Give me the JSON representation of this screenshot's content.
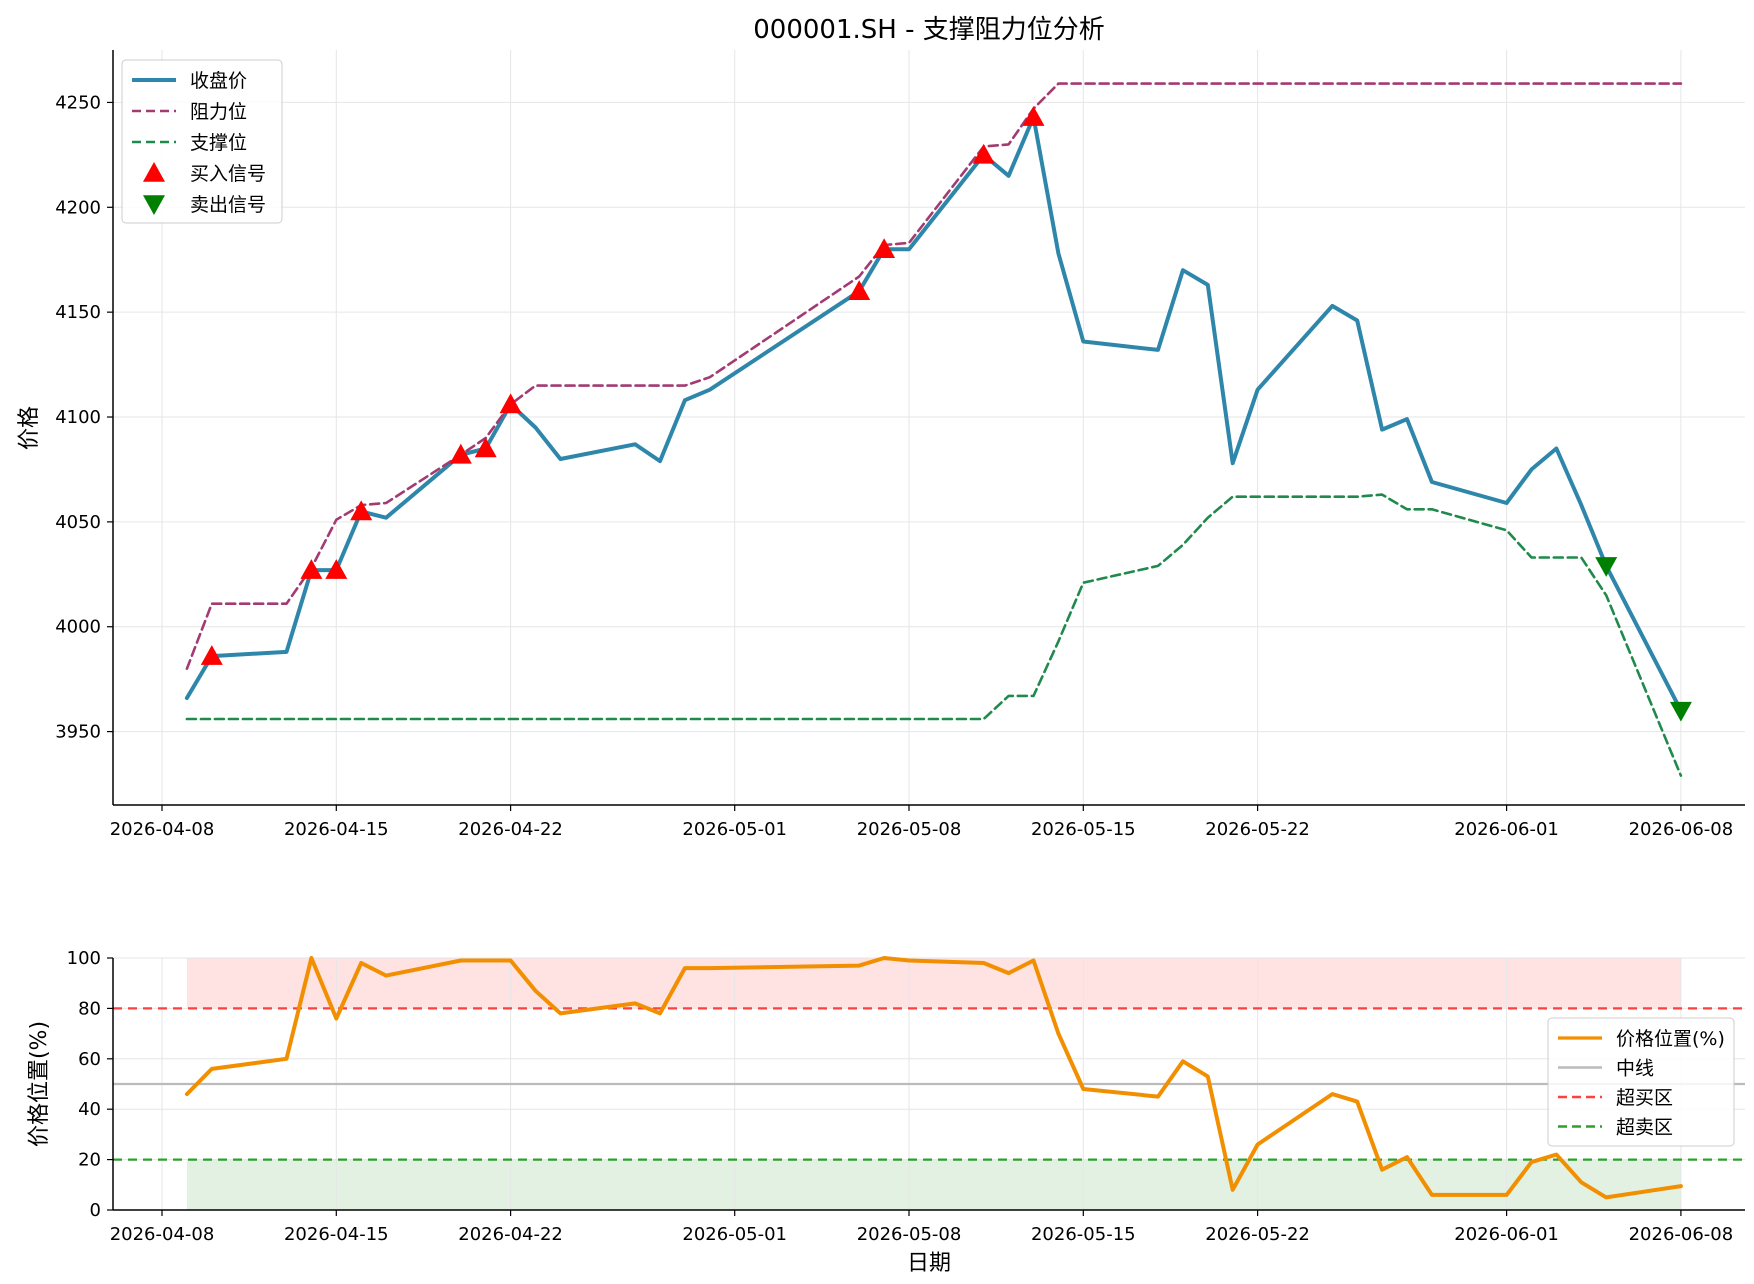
{
  "chart_data": [
    {
      "type": "line",
      "title": "000001.SH - 支撑阻力位分析",
      "xlabel": "",
      "ylabel": "价格",
      "ylim": [
        3915,
        4275
      ],
      "x_tick_labels": [
        "2026-04-08",
        "2026-04-15",
        "2026-04-22",
        "2026-05-01",
        "2026-05-08",
        "2026-05-15",
        "2026-05-22",
        "2026-06-01",
        "2026-06-08"
      ],
      "y_tick_labels": [
        "3950",
        "4000",
        "4050",
        "4100",
        "4150",
        "4200",
        "4250"
      ],
      "grid": true,
      "legend_position": "top-left",
      "x": [
        "2026-04-09",
        "2026-04-10",
        "2026-04-13",
        "2026-04-14",
        "2026-04-15",
        "2026-04-16",
        "2026-04-17",
        "2026-04-20",
        "2026-04-21",
        "2026-04-22",
        "2026-04-23",
        "2026-04-24",
        "2026-04-27",
        "2026-04-28",
        "2026-04-29",
        "2026-04-30",
        "2026-05-06",
        "2026-05-07",
        "2026-05-08",
        "2026-05-11",
        "2026-05-12",
        "2026-05-13",
        "2026-05-14",
        "2026-05-15",
        "2026-05-18",
        "2026-05-19",
        "2026-05-20",
        "2026-05-21",
        "2026-05-22",
        "2026-05-25",
        "2026-05-26",
        "2026-05-27",
        "2026-05-28",
        "2026-05-29",
        "2026-06-01",
        "2026-06-02",
        "2026-06-03",
        "2026-06-04",
        "2026-06-05",
        "2026-06-08"
      ],
      "series": [
        {
          "name": "收盘价",
          "color": "#2e86ab",
          "style": "solid",
          "values": [
            3966,
            3986,
            3988,
            4027,
            4027,
            4055,
            4052,
            4082,
            4085,
            4106,
            4095,
            4080,
            4087,
            4079,
            4108,
            4113,
            4160,
            4180,
            4180,
            4225,
            4215,
            4243,
            4178,
            4136,
            4132,
            4170,
            4163,
            4078,
            4113,
            4153,
            4146,
            4094,
            4099,
            4069,
            4059,
            4075,
            4085,
            4058,
            4029,
            3960
          ]
        },
        {
          "name": "阻力位",
          "color": "#a23b72",
          "style": "dashed",
          "values": [
            3980,
            4011,
            4011,
            4028,
            4051,
            4058,
            4059,
            4082,
            4090,
            4106,
            4115,
            4115,
            4115,
            4115,
            4115,
            4119,
            4167,
            4182,
            4183,
            4229,
            4230,
            4247,
            4259,
            4259,
            4259,
            4259,
            4259,
            4259,
            4259,
            4259,
            4259,
            4259,
            4259,
            4259,
            4259,
            4259,
            4259,
            4259,
            4259,
            4259
          ]
        },
        {
          "name": "支撑位",
          "color": "#1f8a4c",
          "style": "dashed",
          "values": [
            3956,
            3956,
            3956,
            3956,
            3956,
            3956,
            3956,
            3956,
            3956,
            3956,
            3956,
            3956,
            3956,
            3956,
            3956,
            3956,
            3956,
            3956,
            3956,
            3956,
            3967,
            3967,
            3993,
            4021,
            4029,
            4039,
            4052,
            4062,
            4062,
            4062,
            4062,
            4063,
            4056,
            4056,
            4046,
            4033,
            4033,
            4033,
            4015,
            3929
          ]
        }
      ],
      "markers": [
        {
          "name": "买入信号",
          "color": "#ff0000",
          "shape": "triangle-up",
          "points": [
            [
              "2026-04-10",
              3986
            ],
            [
              "2026-04-14",
              4027
            ],
            [
              "2026-04-15",
              4027
            ],
            [
              "2026-04-16",
              4055
            ],
            [
              "2026-04-20",
              4082
            ],
            [
              "2026-04-21",
              4085
            ],
            [
              "2026-04-22",
              4106
            ],
            [
              "2026-05-06",
              4160
            ],
            [
              "2026-05-07",
              4180
            ],
            [
              "2026-05-11",
              4225
            ],
            [
              "2026-05-13",
              4243
            ]
          ]
        },
        {
          "name": "卖出信号",
          "color": "#008000",
          "shape": "triangle-down",
          "points": [
            [
              "2026-06-05",
              4029
            ],
            [
              "2026-06-08",
              3960
            ]
          ]
        }
      ]
    },
    {
      "type": "line",
      "title": "",
      "xlabel": "日期",
      "ylabel": "价格位置(%)",
      "ylim": [
        0,
        100
      ],
      "x_tick_labels": [
        "2026-04-08",
        "2026-04-15",
        "2026-04-22",
        "2026-05-01",
        "2026-05-08",
        "2026-05-15",
        "2026-05-22",
        "2026-06-01",
        "2026-06-08"
      ],
      "y_tick_labels": [
        "0",
        "20",
        "40",
        "60",
        "80",
        "100"
      ],
      "grid": true,
      "legend_position": "right",
      "x": [
        "2026-04-09",
        "2026-04-10",
        "2026-04-13",
        "2026-04-14",
        "2026-04-15",
        "2026-04-16",
        "2026-04-17",
        "2026-04-20",
        "2026-04-21",
        "2026-04-22",
        "2026-04-23",
        "2026-04-24",
        "2026-04-27",
        "2026-04-28",
        "2026-04-29",
        "2026-04-30",
        "2026-05-06",
        "2026-05-07",
        "2026-05-08",
        "2026-05-11",
        "2026-05-12",
        "2026-05-13",
        "2026-05-14",
        "2026-05-15",
        "2026-05-18",
        "2026-05-19",
        "2026-05-20",
        "2026-05-21",
        "2026-05-22",
        "2026-05-25",
        "2026-05-26",
        "2026-05-27",
        "2026-05-28",
        "2026-05-29",
        "2026-06-01",
        "2026-06-02",
        "2026-06-03",
        "2026-06-04",
        "2026-06-05",
        "2026-06-08"
      ],
      "series": [
        {
          "name": "价格位置(%)",
          "color": "#f18f01",
          "style": "solid",
          "values": [
            46,
            56,
            60,
            100,
            76,
            98,
            93,
            99,
            99,
            99,
            87,
            78,
            82,
            78,
            96,
            96,
            97,
            100,
            99,
            98,
            94,
            99,
            70,
            48,
            45,
            59,
            53,
            8,
            26,
            46,
            43,
            16,
            21,
            6,
            6,
            19,
            22,
            11,
            5,
            9.5
          ]
        }
      ],
      "reference_lines": [
        {
          "name": "中线",
          "value": 50,
          "color": "#bbbbbb",
          "style": "solid"
        },
        {
          "name": "超买区",
          "value": 80,
          "color": "#ff4040",
          "style": "dashed"
        },
        {
          "name": "超卖区",
          "value": 20,
          "color": "#2ca02c",
          "style": "dashed"
        }
      ],
      "bands": [
        {
          "from": 80,
          "to": 100,
          "color": "#ffe3e3"
        },
        {
          "from": 0,
          "to": 20,
          "color": "#e3f1e3"
        }
      ]
    }
  ]
}
